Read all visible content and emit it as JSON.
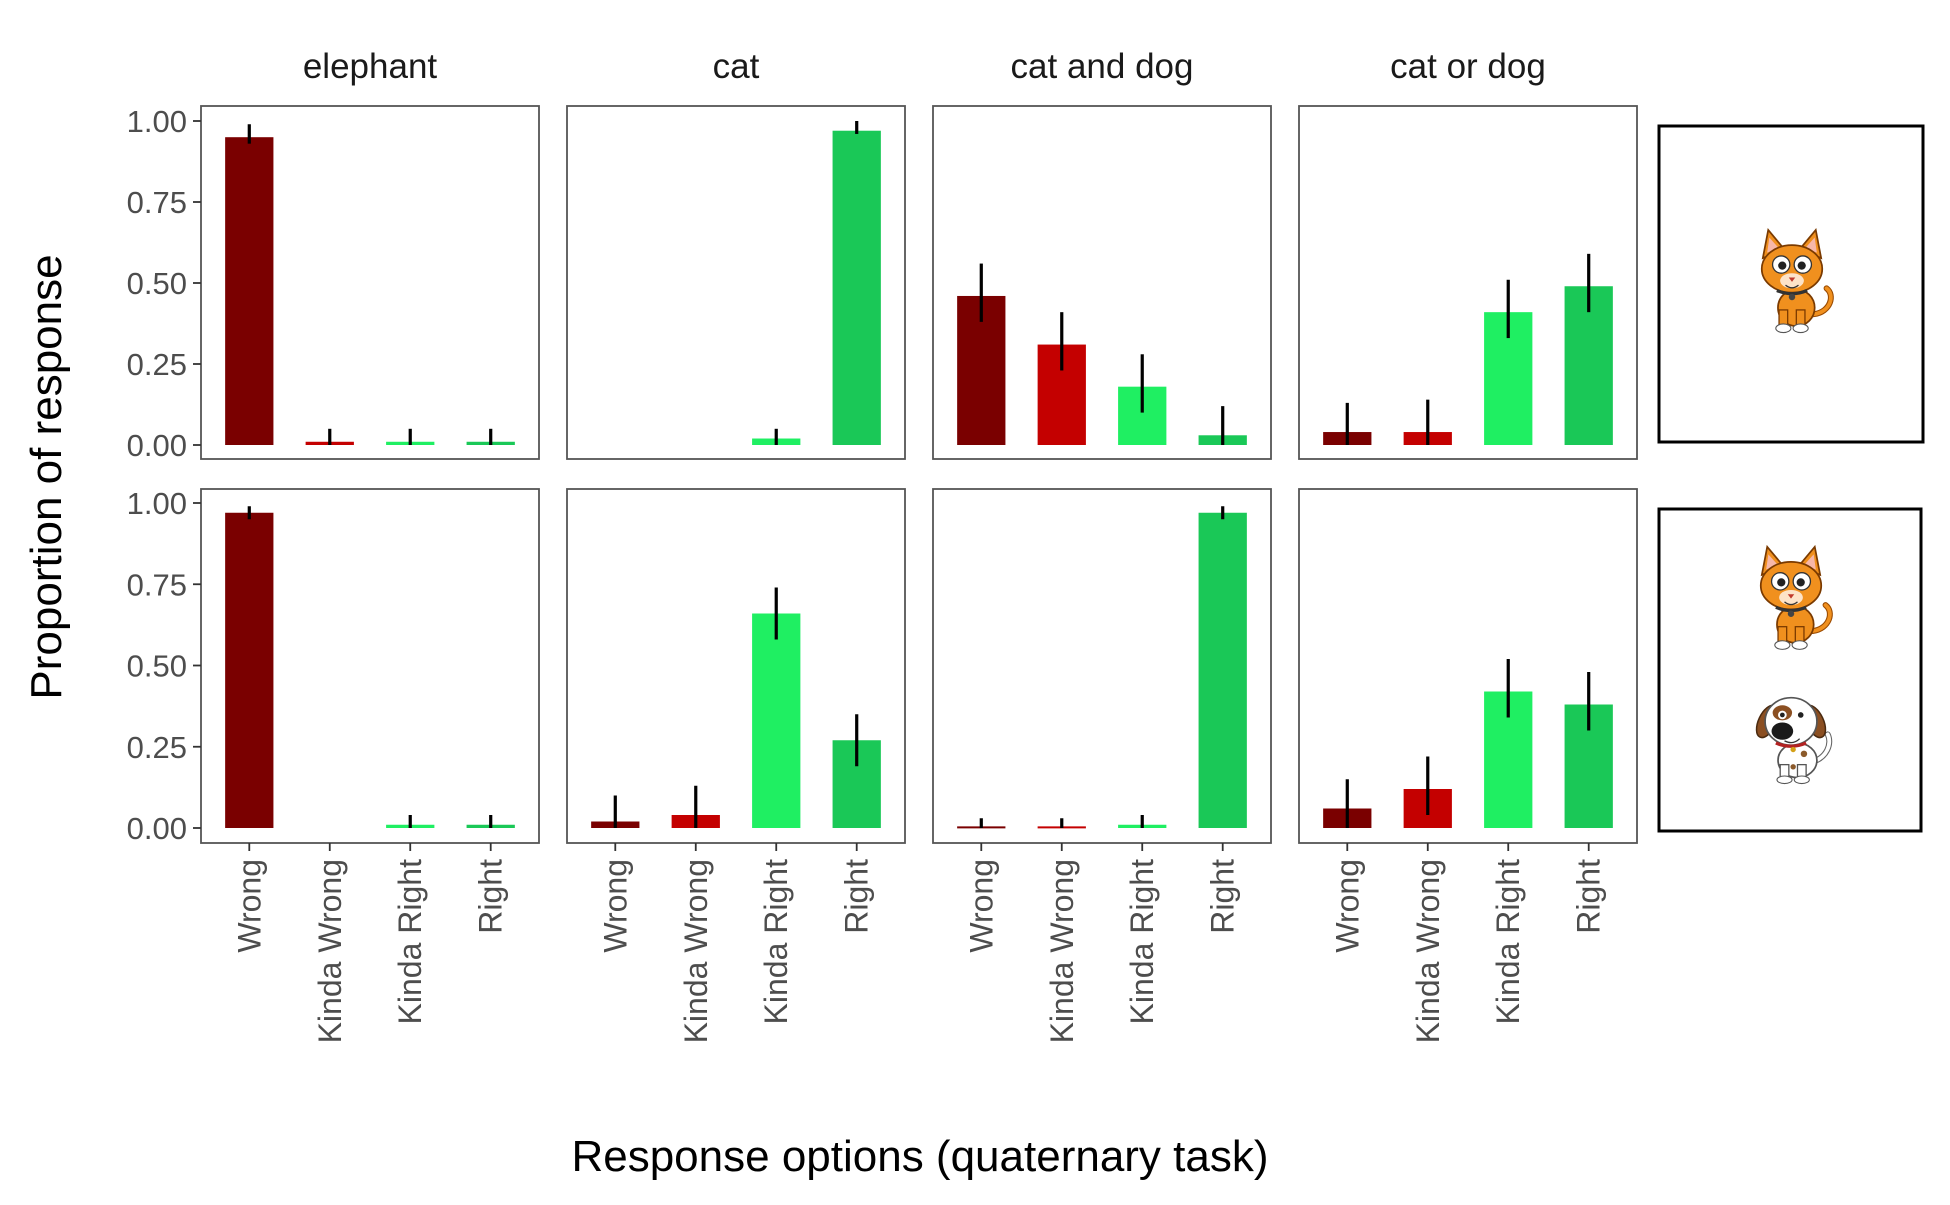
{
  "chart_data": {
    "type": "bar",
    "facet_titles": [
      "elephant",
      "cat",
      "cat and dog",
      "cat or dog"
    ],
    "row_images": [
      [
        "cat-icon"
      ],
      [
        "cat-icon",
        "dog-icon"
      ]
    ],
    "categories": [
      "Wrong",
      "Kinda Wrong",
      "Kinda Right",
      "Right"
    ],
    "yticks": [
      "0.00",
      "0.25",
      "0.50",
      "0.75",
      "1.00"
    ],
    "ylim": [
      0,
      1.05
    ],
    "ylabel": "Proportion of response",
    "xlabel": "Response options (quaternary task)",
    "grid": false,
    "legend": "none",
    "colors": {
      "Wrong": "#7a0000",
      "Kinda Wrong": "#c40000",
      "Kinda Right": "#1fef62",
      "Right": "#1ac857"
    },
    "rows": [
      {
        "panels": [
          {
            "values": [
              0.95,
              0.01,
              0.01,
              0.01
            ],
            "err_low": [
              0.93,
              0.0,
              0.0,
              0.0
            ],
            "err_high": [
              0.99,
              0.05,
              0.05,
              0.05
            ]
          },
          {
            "values": [
              0.0,
              0.0,
              0.02,
              0.97
            ],
            "err_low": [
              null,
              null,
              0.0,
              0.96
            ],
            "err_high": [
              null,
              null,
              0.05,
              1.0
            ]
          },
          {
            "values": [
              0.46,
              0.31,
              0.18,
              0.03
            ],
            "err_low": [
              0.38,
              0.23,
              0.1,
              0.0
            ],
            "err_high": [
              0.56,
              0.41,
              0.28,
              0.12
            ]
          },
          {
            "values": [
              0.04,
              0.04,
              0.41,
              0.49
            ],
            "err_low": [
              0.0,
              0.0,
              0.33,
              0.41
            ],
            "err_high": [
              0.13,
              0.14,
              0.51,
              0.59
            ]
          }
        ]
      },
      {
        "panels": [
          {
            "values": [
              0.97,
              0.0,
              0.01,
              0.01
            ],
            "err_low": [
              0.95,
              null,
              0.0,
              0.0
            ],
            "err_high": [
              0.99,
              null,
              0.04,
              0.04
            ]
          },
          {
            "values": [
              0.02,
              0.04,
              0.66,
              0.27
            ],
            "err_low": [
              0.0,
              0.0,
              0.58,
              0.19
            ],
            "err_high": [
              0.1,
              0.13,
              0.74,
              0.35
            ]
          },
          {
            "values": [
              0.005,
              0.005,
              0.01,
              0.97
            ],
            "err_low": [
              0.0,
              0.0,
              0.0,
              0.95
            ],
            "err_high": [
              0.03,
              0.03,
              0.04,
              0.99
            ]
          },
          {
            "values": [
              0.06,
              0.12,
              0.42,
              0.38
            ],
            "err_low": [
              0.0,
              0.04,
              0.34,
              0.3
            ],
            "err_high": [
              0.15,
              0.22,
              0.52,
              0.48
            ]
          }
        ]
      }
    ]
  }
}
